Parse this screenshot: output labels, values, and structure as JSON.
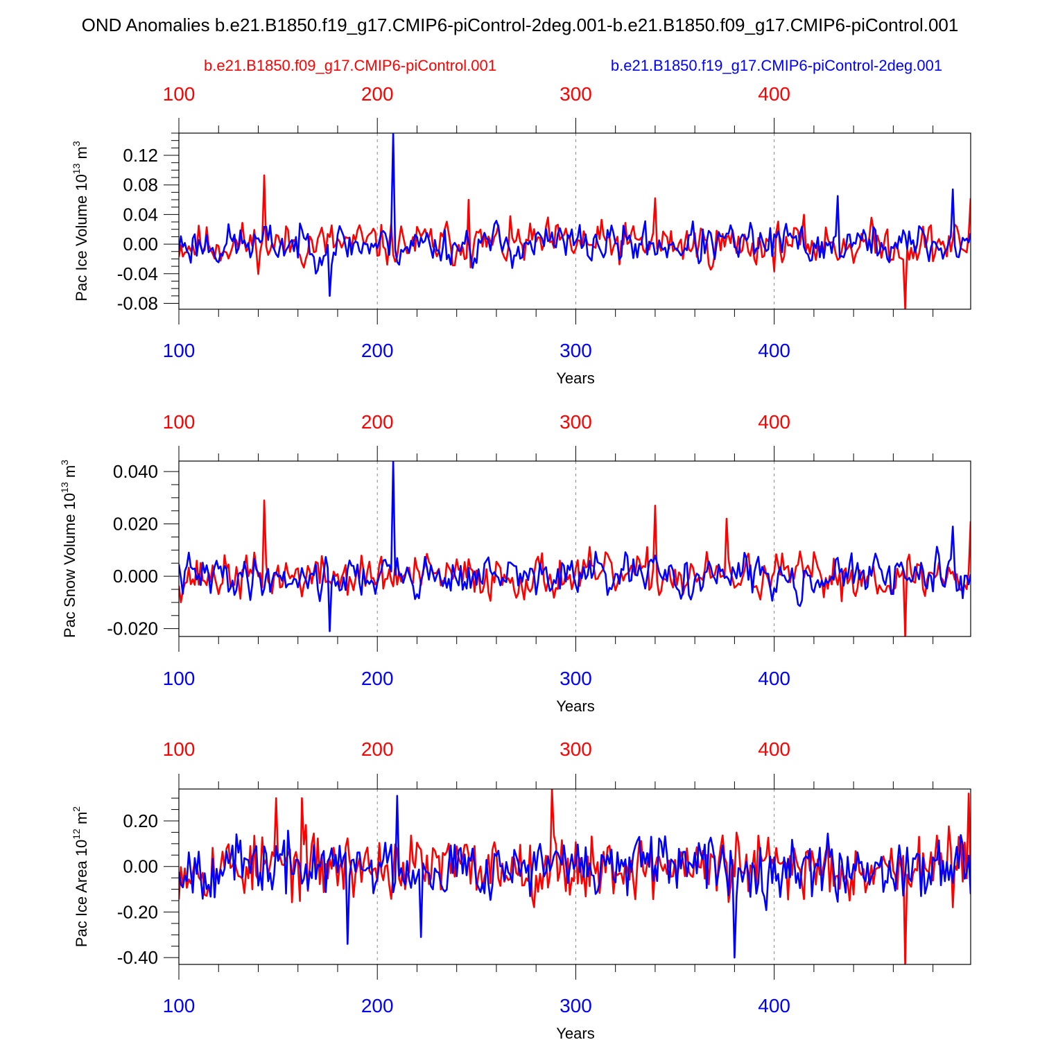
{
  "title": "OND Anomalies b.e21.B1850.f19_g17.CMIP6-piControl-2deg.001-b.e21.B1850.f09_g17.CMIP6-piControl.001",
  "legend": {
    "red_label": "b.e21.B1850.f09_g17.CMIP6-piControl.001",
    "blue_label": "b.e21.B1850.f19_g17.CMIP6-piControl-2deg.001"
  },
  "colors": {
    "red": "#ff0000",
    "blue": "#0000ff",
    "axis": "#000000",
    "grid": "#888888"
  },
  "chart_data": [
    {
      "type": "line",
      "title": "",
      "ylabel": "Pac Ice Volume 10^13 m^3",
      "ylabel_main": "Pac Ice Volume 10",
      "ylabel_exp": "13",
      "ylabel_unit": " m",
      "ylabel_unit_exp": "3",
      "xlabel": "Years",
      "xlim": [
        100,
        499
      ],
      "ylim": [
        -0.088,
        0.15
      ],
      "x_ticks": [
        100,
        200,
        300,
        400
      ],
      "x_tick_labels": [
        "100",
        "200",
        "300",
        "400"
      ],
      "y_ticks": [
        -0.08,
        -0.04,
        0.0,
        0.04,
        0.08,
        0.12
      ],
      "y_tick_labels": [
        "-0.08",
        "-0.04",
        "0.00",
        "0.04",
        "0.08",
        "0.12"
      ],
      "series": [
        {
          "name": "b.e21.B1850.f09_g17.CMIP6-piControl.001",
          "color": "red",
          "x_start": 100,
          "x_end": 499,
          "seed": 11,
          "amp": 0.024,
          "ar": 0.3,
          "spikes": [
            [
              143,
              0.093
            ],
            [
              246,
              0.06
            ],
            [
              340,
              0.062
            ],
            [
              466,
              -0.087
            ],
            [
              499,
              0.062
            ]
          ]
        },
        {
          "name": "b.e21.B1850.f19_g17.CMIP6-piControl-2deg.001",
          "color": "blue",
          "x_start": 100,
          "x_end": 499,
          "seed": 23,
          "amp": 0.022,
          "ar": 0.4,
          "spikes": [
            [
              208,
              0.15
            ],
            [
              176,
              -0.07
            ],
            [
              432,
              0.065
            ],
            [
              490,
              0.074
            ]
          ]
        }
      ]
    },
    {
      "type": "line",
      "title": "",
      "ylabel": "Pac Snow Volume 10^13 m^3",
      "ylabel_main": "Pac Snow Volume 10",
      "ylabel_exp": "13",
      "ylabel_unit": " m",
      "ylabel_unit_exp": "3",
      "xlabel": "Years",
      "xlim": [
        100,
        499
      ],
      "ylim": [
        -0.023,
        0.044
      ],
      "x_ticks": [
        100,
        200,
        300,
        400
      ],
      "x_tick_labels": [
        "100",
        "200",
        "300",
        "400"
      ],
      "y_ticks": [
        -0.02,
        0.0,
        0.02,
        0.04
      ],
      "y_tick_labels": [
        "-0.020",
        "0.000",
        "0.020",
        "0.040"
      ],
      "series": [
        {
          "name": "b.e21.B1850.f09_g17.CMIP6-piControl.001",
          "color": "red",
          "x_start": 100,
          "x_end": 499,
          "seed": 37,
          "amp": 0.0068,
          "ar": 0.3,
          "spikes": [
            [
              143,
              0.029
            ],
            [
              340,
              0.027
            ],
            [
              376,
              0.022
            ],
            [
              466,
              -0.023
            ],
            [
              499,
              0.021
            ]
          ]
        },
        {
          "name": "b.e21.B1850.f19_g17.CMIP6-piControl-2deg.001",
          "color": "blue",
          "x_start": 100,
          "x_end": 499,
          "seed": 41,
          "amp": 0.0062,
          "ar": 0.4,
          "spikes": [
            [
              208,
              0.044
            ],
            [
              176,
              -0.021
            ],
            [
              490,
              0.019
            ]
          ]
        }
      ]
    },
    {
      "type": "line",
      "title": "",
      "ylabel": "Pac Ice Area 10^12 m^2",
      "ylabel_main": "Pac Ice Area 10",
      "ylabel_exp": "12",
      "ylabel_unit": " m",
      "ylabel_unit_exp": "2",
      "xlabel": "Years",
      "xlim": [
        100,
        499
      ],
      "ylim": [
        -0.43,
        0.34
      ],
      "x_ticks": [
        100,
        200,
        300,
        400
      ],
      "x_tick_labels": [
        "100",
        "200",
        "300",
        "400"
      ],
      "y_ticks": [
        -0.4,
        -0.2,
        0.0,
        0.2
      ],
      "y_tick_labels": [
        "-0.40",
        "-0.20",
        "0.00",
        "0.20"
      ],
      "series": [
        {
          "name": "b.e21.B1850.f09_g17.CMIP6-piControl.001",
          "color": "red",
          "x_start": 100,
          "x_end": 499,
          "seed": 53,
          "amp": 0.12,
          "ar": 0.1,
          "spikes": [
            [
              288,
              0.34
            ],
            [
              466,
              -0.43
            ],
            [
              498,
              0.32
            ],
            [
              149,
              0.3
            ],
            [
              162,
              0.3
            ]
          ]
        },
        {
          "name": "b.e21.B1850.f19_g17.CMIP6-piControl-2deg.001",
          "color": "blue",
          "x_start": 100,
          "x_end": 499,
          "seed": 67,
          "amp": 0.11,
          "ar": 0.1,
          "spikes": [
            [
              210,
              0.31
            ],
            [
              185,
              -0.34
            ],
            [
              380,
              -0.4
            ],
            [
              222,
              -0.31
            ]
          ]
        }
      ]
    }
  ]
}
